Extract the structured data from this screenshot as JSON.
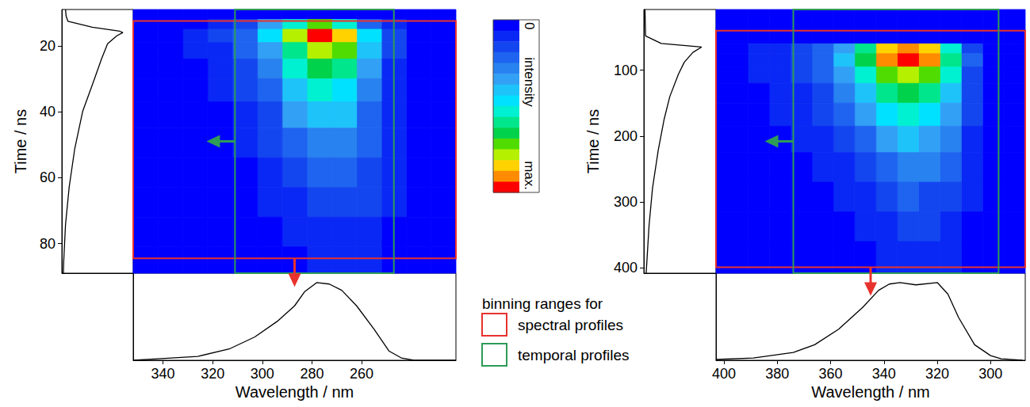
{
  "chart_data": [
    {
      "type": "heatmap",
      "xlabel": "Wavelength / nm",
      "ylabel": "Time / ns",
      "xlim": [
        352,
        222
      ],
      "ylim": [
        89,
        9
      ],
      "xticks": [
        340,
        320,
        300,
        280,
        260
      ],
      "yticks": [
        20,
        40,
        60,
        80
      ],
      "wavelength_edges": [
        222,
        232,
        242,
        252,
        262,
        272,
        282,
        292,
        302,
        312,
        322,
        332,
        342,
        352
      ],
      "time_edges": [
        9,
        12,
        15,
        19,
        24,
        30,
        37,
        45,
        54,
        63,
        72,
        81,
        89
      ],
      "cells": [
        [
          0,
          0,
          0,
          0,
          0.02,
          0.03,
          0.02,
          0,
          0,
          0,
          0,
          0,
          0
        ],
        [
          0,
          0,
          0.05,
          0.2,
          0.5,
          0.7,
          0.55,
          0.3,
          0.15,
          0.07,
          0.03,
          0.01,
          0
        ],
        [
          0,
          0.02,
          0.1,
          0.45,
          0.85,
          1.0,
          0.8,
          0.45,
          0.22,
          0.1,
          0.05,
          0.02,
          0
        ],
        [
          0,
          0.02,
          0.1,
          0.38,
          0.7,
          0.8,
          0.62,
          0.35,
          0.18,
          0.08,
          0.04,
          0.02,
          0
        ],
        [
          0,
          0.02,
          0.09,
          0.32,
          0.58,
          0.65,
          0.5,
          0.28,
          0.14,
          0.07,
          0.03,
          0.01,
          0
        ],
        [
          0,
          0.02,
          0.08,
          0.27,
          0.47,
          0.52,
          0.4,
          0.22,
          0.11,
          0.05,
          0.02,
          0,
          0
        ],
        [
          0,
          0.01,
          0.07,
          0.22,
          0.37,
          0.4,
          0.3,
          0.16,
          0.08,
          0.03,
          0.01,
          0,
          0
        ],
        [
          0,
          0.01,
          0.06,
          0.17,
          0.28,
          0.29,
          0.21,
          0.11,
          0.05,
          0.02,
          0,
          0,
          0
        ],
        [
          0,
          0.01,
          0.05,
          0.13,
          0.2,
          0.2,
          0.14,
          0.07,
          0.03,
          0.01,
          0,
          0,
          0
        ],
        [
          0,
          0,
          0.04,
          0.1,
          0.14,
          0.13,
          0.09,
          0.04,
          0.01,
          0,
          0,
          0,
          0
        ],
        [
          0,
          0,
          0.03,
          0.07,
          0.09,
          0.08,
          0.05,
          0.02,
          0,
          0,
          0,
          0,
          0
        ],
        [
          0,
          0,
          0.01,
          0.04,
          0.05,
          0.04,
          0.02,
          0,
          0,
          0,
          0,
          0,
          0
        ]
      ],
      "temporal_profile": {
        "type": "line",
        "color": "#000000",
        "tick_labels": false,
        "xlim": [
          0,
          1.17
        ],
        "time": [
          9,
          11,
          12.6,
          14.4,
          15.6,
          16,
          17,
          19.4,
          24,
          30.8,
          40,
          51.4,
          62.9,
          74.3,
          85.7,
          89
        ],
        "values": [
          0.06,
          0.07,
          0.1,
          0.5,
          0.95,
          1.0,
          0.9,
          0.75,
          0.65,
          0.52,
          0.34,
          0.21,
          0.12,
          0.06,
          0.03,
          0.025
        ]
      },
      "spectral_profile": {
        "type": "line",
        "color": "#000000",
        "tick_labels": false,
        "ylim": [
          0,
          1.12
        ],
        "wavelength": [
          352,
          342,
          326,
          313,
          303,
          294,
          287,
          283,
          278,
          273,
          268,
          262,
          255,
          249,
          244,
          239,
          222
        ],
        "values": [
          0,
          0.02,
          0.05,
          0.15,
          0.3,
          0.5,
          0.7,
          0.88,
          1.0,
          0.98,
          0.9,
          0.7,
          0.4,
          0.12,
          0.03,
          0,
          0
        ]
      },
      "binning_ranges": [
        {
          "name": "spectral profiles",
          "wavelength": [
            352,
            222
          ],
          "time": [
            12.5,
            84.5
          ]
        },
        {
          "name": "temporal profiles",
          "wavelength": [
            311,
            247
          ],
          "time": [
            9,
            89
          ]
        }
      ]
    },
    {
      "type": "heatmap",
      "xlabel": "Wavelength / nm",
      "ylabel": "Time / ns",
      "xlim": [
        403,
        287
      ],
      "ylim": [
        408,
        8
      ],
      "xticks": [
        400,
        380,
        360,
        340,
        320,
        300
      ],
      "yticks": [
        100,
        200,
        300,
        400
      ],
      "wavelength_edges": [
        287,
        295,
        303,
        311,
        319,
        327,
        335,
        343,
        351,
        359,
        367,
        375,
        383,
        391,
        403
      ],
      "time_edges": [
        8,
        40,
        60,
        75,
        95,
        120,
        150,
        185,
        225,
        270,
        315,
        360,
        408
      ],
      "cells": [
        [
          0,
          0,
          0,
          0,
          0,
          0,
          0,
          0,
          0,
          0,
          0,
          0,
          0,
          0
        ],
        [
          0,
          0,
          0,
          0.01,
          0.02,
          0.03,
          0.03,
          0.02,
          0.01,
          0,
          0,
          0,
          0,
          0
        ],
        [
          0,
          0.02,
          0.15,
          0.55,
          0.85,
          0.95,
          0.85,
          0.6,
          0.35,
          0.2,
          0.1,
          0.06,
          0.04,
          0.02
        ],
        [
          0,
          0.03,
          0.18,
          0.6,
          0.92,
          1.0,
          0.9,
          0.65,
          0.4,
          0.22,
          0.12,
          0.07,
          0.05,
          0.03
        ],
        [
          0,
          0.02,
          0.15,
          0.5,
          0.75,
          0.82,
          0.72,
          0.52,
          0.32,
          0.18,
          0.1,
          0.06,
          0.04,
          0.02
        ],
        [
          0,
          0.02,
          0.12,
          0.4,
          0.6,
          0.65,
          0.57,
          0.4,
          0.25,
          0.14,
          0.08,
          0.05,
          0.03,
          0.01
        ],
        [
          0,
          0.01,
          0.1,
          0.32,
          0.47,
          0.5,
          0.44,
          0.3,
          0.18,
          0.1,
          0.06,
          0.04,
          0.02,
          0
        ],
        [
          0,
          0.01,
          0.08,
          0.24,
          0.35,
          0.37,
          0.32,
          0.22,
          0.13,
          0.07,
          0.04,
          0.02,
          0,
          0
        ],
        [
          0,
          0,
          0.06,
          0.17,
          0.25,
          0.26,
          0.22,
          0.15,
          0.08,
          0.04,
          0.02,
          0,
          0,
          0
        ],
        [
          0,
          0,
          0.04,
          0.11,
          0.16,
          0.17,
          0.14,
          0.09,
          0.05,
          0.02,
          0,
          0,
          0,
          0
        ],
        [
          0,
          0,
          0.02,
          0.07,
          0.1,
          0.1,
          0.08,
          0.05,
          0.02,
          0,
          0,
          0,
          0,
          0
        ],
        [
          0,
          0,
          0.01,
          0.04,
          0.06,
          0.06,
          0.04,
          0.02,
          0,
          0,
          0,
          0,
          0,
          0
        ]
      ],
      "temporal_profile": {
        "type": "line",
        "color": "#000000",
        "tick_labels": false,
        "xlim": [
          0,
          1.25
        ],
        "time": [
          8,
          48,
          59.6,
          65,
          73,
          88,
          106,
          140,
          175,
          221,
          279,
          336,
          394,
          408
        ],
        "values": [
          0.02,
          0.03,
          0.3,
          1.0,
          0.85,
          0.7,
          0.6,
          0.45,
          0.35,
          0.25,
          0.15,
          0.09,
          0.05,
          0.04
        ]
      },
      "spectral_profile": {
        "type": "line",
        "color": "#000000",
        "tick_labels": false,
        "ylim": [
          0,
          1.12
        ],
        "wavelength": [
          403,
          389,
          374,
          366,
          357,
          348,
          342,
          338,
          334,
          328,
          320,
          316,
          312,
          306,
          300,
          296,
          288
        ],
        "values": [
          0.01,
          0.03,
          0.1,
          0.2,
          0.4,
          0.68,
          0.9,
          0.98,
          1.0,
          0.97,
          1.0,
          0.85,
          0.55,
          0.2,
          0.06,
          0.02,
          0
        ]
      },
      "binning_ranges": [
        {
          "name": "spectral profiles",
          "wavelength": [
            403,
            287
          ],
          "time": [
            40,
            399
          ]
        },
        {
          "name": "temporal profiles",
          "wavelength": [
            374,
            297
          ],
          "time": [
            8,
            408
          ]
        }
      ]
    }
  ],
  "color_bar": {
    "title": "intensity",
    "range": [
      0,
      1
    ],
    "ticks": [
      0,
      {
        "value": 1,
        "label": "max."
      }
    ],
    "colors": [
      "#0000ff",
      "#0a28f5",
      "#1446f0",
      "#1e64f0",
      "#2882f0",
      "#32a0f5",
      "#1ec3fa",
      "#00e1ff",
      "#00f0d2",
      "#00e68c",
      "#00d24b",
      "#50dc00",
      "#b4f000",
      "#ffd200",
      "#ff8c00",
      "#ff0000"
    ]
  },
  "binning_legend": {
    "title": "binning ranges for",
    "items": [
      {
        "name": "spectral profiles",
        "color": "#e8322d"
      },
      {
        "name": "temporal profiles",
        "color": "#2e9b57"
      }
    ]
  }
}
